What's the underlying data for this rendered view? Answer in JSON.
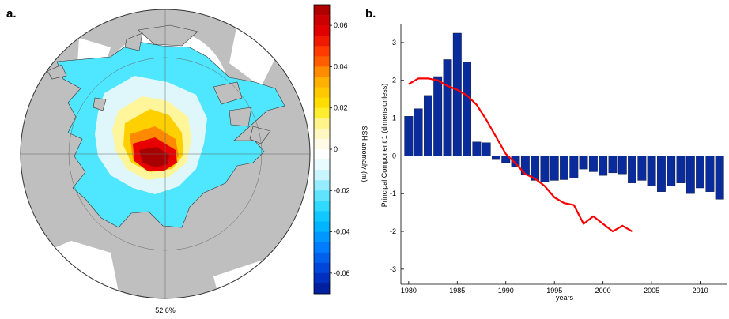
{
  "panel_a": {
    "label": "a.",
    "caption": "52.6%",
    "colorbar": {
      "label": "SSH anomaly (m)",
      "range": [
        -0.07,
        0.07
      ],
      "ticks": [
        "0.06",
        "0.04",
        "0.02",
        "0",
        "-0.02",
        "-0.04",
        "-0.06"
      ],
      "tick_values": [
        0.06,
        0.04,
        0.02,
        0,
        -0.02,
        -0.04,
        -0.06
      ],
      "colors_top_to_bottom": [
        "#b00000",
        "#cc0000",
        "#e00000",
        "#f01a00",
        "#ff3b00",
        "#ff5e00",
        "#ff8c00",
        "#ffb000",
        "#ffc800",
        "#ffdd00",
        "#ffee30",
        "#fff38a",
        "#fff7c2",
        "#fffbe6",
        "#ffffff",
        "#e8fbff",
        "#c8f5ff",
        "#96ecff",
        "#5fe3ff",
        "#2fd9ff",
        "#10c8ff",
        "#00b4ff",
        "#0098ff",
        "#007cff",
        "#0060ee",
        "#0046d8",
        "#0030c0",
        "#0020a0"
      ]
    }
  },
  "chart_data": {
    "type": "bar",
    "label": "b.",
    "xlabel": "years",
    "ylabel": "Principal Component 1 (dimensionless)",
    "xlim": [
      1979.2,
      2012.8
    ],
    "ylim": [
      -3.4,
      3.5
    ],
    "xticks": [
      "1980",
      "1985",
      "1990",
      "1995",
      "2000",
      "2005",
      "2010"
    ],
    "yticks": [
      "3",
      "2",
      "1",
      "0",
      "-1",
      "-2",
      "-3"
    ],
    "bar_color": "#0a2b9c",
    "line_color": "#ff0000",
    "bars": {
      "x": [
        1980,
        1981,
        1982,
        1983,
        1984,
        1985,
        1986,
        1987,
        1988,
        1989,
        1990,
        1991,
        1992,
        1993,
        1994,
        1995,
        1996,
        1997,
        1998,
        1999,
        2000,
        2001,
        2002,
        2003,
        2004,
        2005,
        2006,
        2007,
        2008,
        2009,
        2010,
        2011,
        2012
      ],
      "values": [
        1.05,
        1.25,
        1.6,
        2.1,
        2.55,
        3.25,
        2.48,
        0.37,
        0.35,
        -0.1,
        -0.18,
        -0.3,
        -0.5,
        -0.65,
        -0.7,
        -0.65,
        -0.63,
        -0.58,
        -0.35,
        -0.42,
        -0.52,
        -0.45,
        -0.48,
        -0.72,
        -0.65,
        -0.8,
        -0.95,
        -0.8,
        -0.72,
        -1.0,
        -0.85,
        -0.95,
        -1.15
      ]
    },
    "line": {
      "x": [
        1980,
        1981,
        1982,
        1983,
        1984,
        1985,
        1986,
        1987,
        1988,
        1989,
        1990,
        1991,
        1992,
        1993,
        1994,
        1995,
        1996,
        1997,
        1998,
        1999,
        2000,
        2001,
        2002,
        2003
      ],
      "values": [
        1.9,
        2.05,
        2.05,
        2.0,
        1.85,
        1.75,
        1.6,
        1.35,
        0.95,
        0.5,
        0.05,
        -0.2,
        -0.48,
        -0.6,
        -0.8,
        -1.1,
        -1.25,
        -1.3,
        -1.8,
        -1.6,
        -1.8,
        -2.0,
        -1.85,
        -2.0
      ]
    }
  }
}
